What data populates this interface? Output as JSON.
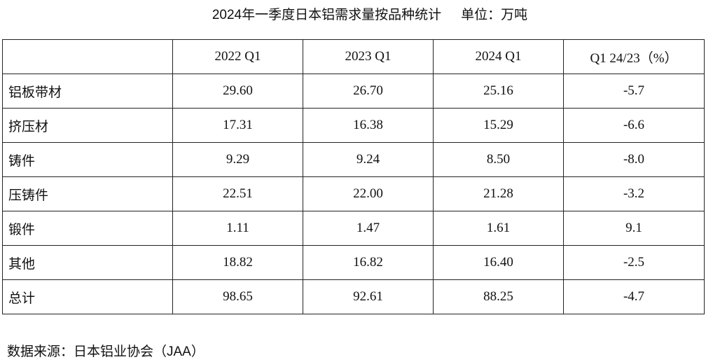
{
  "title": "2024年一季度日本铝需求量按品种统计",
  "unit": "单位：万吨",
  "table": {
    "headers": [
      "",
      "2022 Q1",
      "2023 Q1",
      "2024 Q1",
      "Q1 24/23（%）"
    ],
    "rows": [
      [
        "铝板带材",
        "29.60",
        "26.70",
        "25.16",
        "-5.7"
      ],
      [
        "挤压材",
        "17.31",
        "16.38",
        "15.29",
        "-6.6"
      ],
      [
        "铸件",
        "9.29",
        "9.24",
        "8.50",
        "-8.0"
      ],
      [
        "压铸件",
        "22.51",
        "22.00",
        "21.28",
        "-3.2"
      ],
      [
        "锻件",
        "1.11",
        "1.47",
        "1.61",
        "9.1"
      ],
      [
        "其他",
        "18.82",
        "16.82",
        "16.40",
        "-2.5"
      ],
      [
        "总计",
        "98.65",
        "92.61",
        "88.25",
        "-4.7"
      ]
    ]
  },
  "source": "数据来源：日本铝业协会（JAA）"
}
